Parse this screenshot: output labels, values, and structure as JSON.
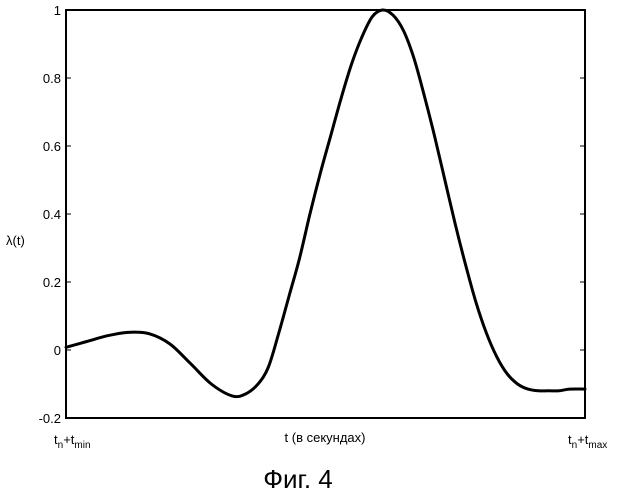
{
  "chart_data": {
    "type": "line",
    "title": "",
    "ylabel": "λ(t)",
    "xlabel": "t (в секундах)",
    "xlim": [
      0,
      1
    ],
    "ylim": [
      -0.2,
      1.0
    ],
    "y_ticks": [
      -0.2,
      0,
      0.2,
      0.4,
      0.6,
      0.8,
      1
    ],
    "y_tick_labels": [
      "-0.2",
      "0",
      "0.2",
      "0.4",
      "0.6",
      "0.8",
      "1"
    ],
    "x_tick_left": {
      "base": "t",
      "sub1": "n",
      "plus": "+t",
      "sub2": "min"
    },
    "x_tick_right": {
      "base": "t",
      "sub1": "n",
      "plus": "+t",
      "sub2": "max"
    },
    "grid": false,
    "series": [
      {
        "color": "#000000",
        "x": [
          0,
          0.04,
          0.08,
          0.12,
          0.16,
          0.2,
          0.24,
          0.28,
          0.32,
          0.345,
          0.37,
          0.39,
          0.41,
          0.43,
          0.45,
          0.47,
          0.49,
          0.51,
          0.53,
          0.55,
          0.57,
          0.59,
          0.61,
          0.63,
          0.65,
          0.67,
          0.69,
          0.71,
          0.73,
          0.75,
          0.77,
          0.79,
          0.81,
          0.83,
          0.85,
          0.87,
          0.89,
          0.91,
          0.93,
          0.95,
          0.97,
          1
        ],
        "y": [
          0.008,
          0.025,
          0.042,
          0.052,
          0.048,
          0.018,
          -0.04,
          -0.1,
          -0.135,
          -0.13,
          -0.1,
          -0.05,
          0.05,
          0.16,
          0.27,
          0.4,
          0.52,
          0.63,
          0.74,
          0.84,
          0.92,
          0.98,
          1.0,
          0.985,
          0.94,
          0.86,
          0.75,
          0.63,
          0.5,
          0.37,
          0.25,
          0.14,
          0.05,
          -0.02,
          -0.07,
          -0.1,
          -0.115,
          -0.12,
          -0.12,
          -0.12,
          -0.115,
          -0.115
        ]
      }
    ]
  },
  "figure": {
    "caption": "Фиг. 4"
  }
}
